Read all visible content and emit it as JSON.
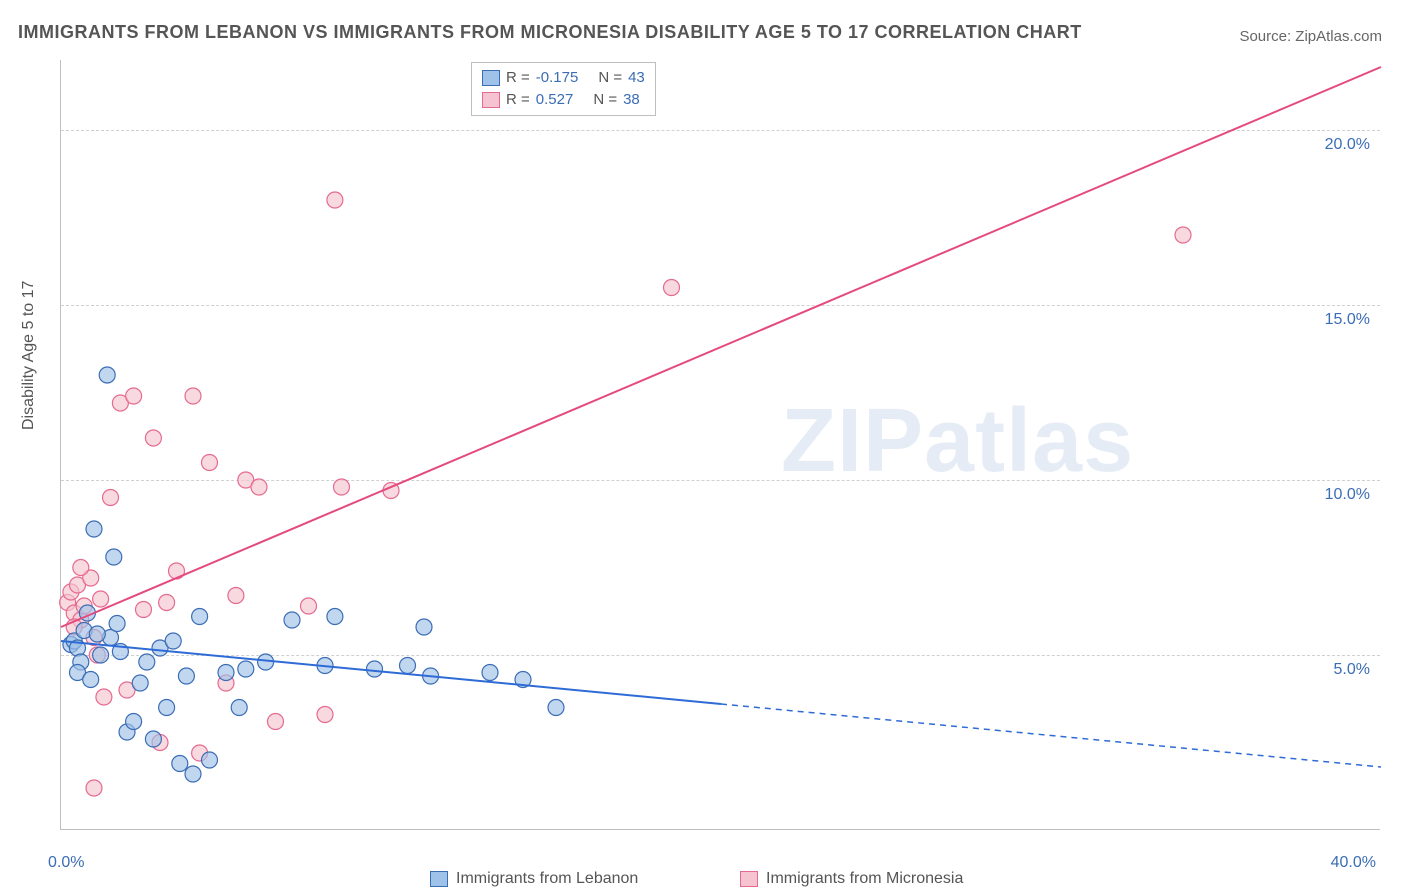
{
  "title": "IMMIGRANTS FROM LEBANON VS IMMIGRANTS FROM MICRONESIA DISABILITY AGE 5 TO 17 CORRELATION CHART",
  "source": "Source: ZipAtlas.com",
  "y_axis_title": "Disability Age 5 to 17",
  "watermark": "ZIPatlas",
  "chart": {
    "type": "scatter-with-regression",
    "background_color": "#ffffff",
    "grid_color": "#d0d0d0",
    "axis_color": "#bfbfbf",
    "xlim": [
      0,
      40
    ],
    "ylim": [
      0,
      22
    ],
    "x_ticks": [
      0,
      40
    ],
    "x_tick_labels": [
      "0.0%",
      "40.0%"
    ],
    "y_ticks": [
      5,
      10,
      15,
      20
    ],
    "y_tick_labels": [
      "5.0%",
      "10.0%",
      "15.0%",
      "20.0%"
    ],
    "tick_color": "#3b6db5",
    "tick_fontsize": 16,
    "title_fontsize": 18,
    "title_color": "#555555"
  },
  "series": [
    {
      "name": "Immigrants from Lebanon",
      "short": "lebanon",
      "R": "-0.175",
      "N": "43",
      "fill_color": "#9fc2e8",
      "stroke_color": "#3b6db5",
      "line_color": "#2e6bd6",
      "line_width": 2,
      "regression": {
        "x1": 0,
        "y1": 5.4,
        "x2": 20,
        "y2": 3.6,
        "x3": 40,
        "y3": 1.8,
        "solid_until_x": 20
      },
      "points": [
        [
          0.3,
          5.3
        ],
        [
          0.4,
          5.4
        ],
        [
          0.5,
          5.2
        ],
        [
          0.6,
          4.8
        ],
        [
          0.7,
          5.7
        ],
        [
          0.8,
          6.2
        ],
        [
          1.0,
          8.6
        ],
        [
          1.2,
          5.0
        ],
        [
          1.4,
          13.0
        ],
        [
          1.5,
          5.5
        ],
        [
          1.6,
          7.8
        ],
        [
          1.7,
          5.9
        ],
        [
          1.8,
          5.1
        ],
        [
          2.0,
          2.8
        ],
        [
          2.2,
          3.1
        ],
        [
          2.4,
          4.2
        ],
        [
          2.6,
          4.8
        ],
        [
          2.8,
          2.6
        ],
        [
          3.0,
          5.2
        ],
        [
          3.2,
          3.5
        ],
        [
          3.4,
          5.4
        ],
        [
          3.6,
          1.9
        ],
        [
          3.8,
          4.4
        ],
        [
          4.0,
          1.6
        ],
        [
          4.2,
          6.1
        ],
        [
          4.5,
          2.0
        ],
        [
          5.0,
          4.5
        ],
        [
          5.4,
          3.5
        ],
        [
          5.6,
          4.6
        ],
        [
          6.2,
          4.8
        ],
        [
          7.0,
          6.0
        ],
        [
          8.0,
          4.7
        ],
        [
          8.3,
          6.1
        ],
        [
          9.5,
          4.6
        ],
        [
          10.5,
          4.7
        ],
        [
          11.0,
          5.8
        ],
        [
          11.2,
          4.4
        ],
        [
          13.0,
          4.5
        ],
        [
          14.0,
          4.3
        ],
        [
          15.0,
          3.5
        ],
        [
          0.5,
          4.5
        ],
        [
          0.9,
          4.3
        ],
        [
          1.1,
          5.6
        ]
      ]
    },
    {
      "name": "Immigrants from Micronesia",
      "short": "micronesia",
      "R": "0.527",
      "N": "38",
      "fill_color": "#f5c4d0",
      "stroke_color": "#e66a8f",
      "line_color": "#e44a7e",
      "line_width": 2,
      "regression": {
        "x1": 0,
        "y1": 5.8,
        "x2": 40,
        "y2": 21.8
      },
      "points": [
        [
          0.2,
          6.5
        ],
        [
          0.3,
          6.8
        ],
        [
          0.4,
          6.2
        ],
        [
          0.5,
          7.0
        ],
        [
          0.6,
          6.0
        ],
        [
          0.7,
          6.4
        ],
        [
          0.9,
          7.2
        ],
        [
          1.0,
          5.5
        ],
        [
          1.2,
          6.6
        ],
        [
          1.5,
          9.5
        ],
        [
          1.8,
          12.2
        ],
        [
          2.0,
          4.0
        ],
        [
          2.2,
          12.4
        ],
        [
          2.5,
          6.3
        ],
        [
          2.8,
          11.2
        ],
        [
          3.0,
          2.5
        ],
        [
          3.2,
          6.5
        ],
        [
          3.5,
          7.4
        ],
        [
          4.0,
          12.4
        ],
        [
          4.2,
          2.2
        ],
        [
          4.5,
          10.5
        ],
        [
          5.0,
          4.2
        ],
        [
          5.3,
          6.7
        ],
        [
          5.6,
          10.0
        ],
        [
          6.0,
          9.8
        ],
        [
          6.5,
          3.1
        ],
        [
          7.5,
          6.4
        ],
        [
          8.0,
          3.3
        ],
        [
          8.3,
          18.0
        ],
        [
          8.5,
          9.8
        ],
        [
          10.0,
          9.7
        ],
        [
          1.0,
          1.2
        ],
        [
          1.3,
          3.8
        ],
        [
          18.5,
          15.5
        ],
        [
          34.0,
          17.0
        ],
        [
          0.4,
          5.8
        ],
        [
          0.6,
          7.5
        ],
        [
          1.1,
          5.0
        ]
      ]
    }
  ],
  "legend": {
    "R_label": "R =",
    "N_label": "N =",
    "bottom_items": [
      "Immigrants from Lebanon",
      "Immigrants from Micronesia"
    ]
  }
}
